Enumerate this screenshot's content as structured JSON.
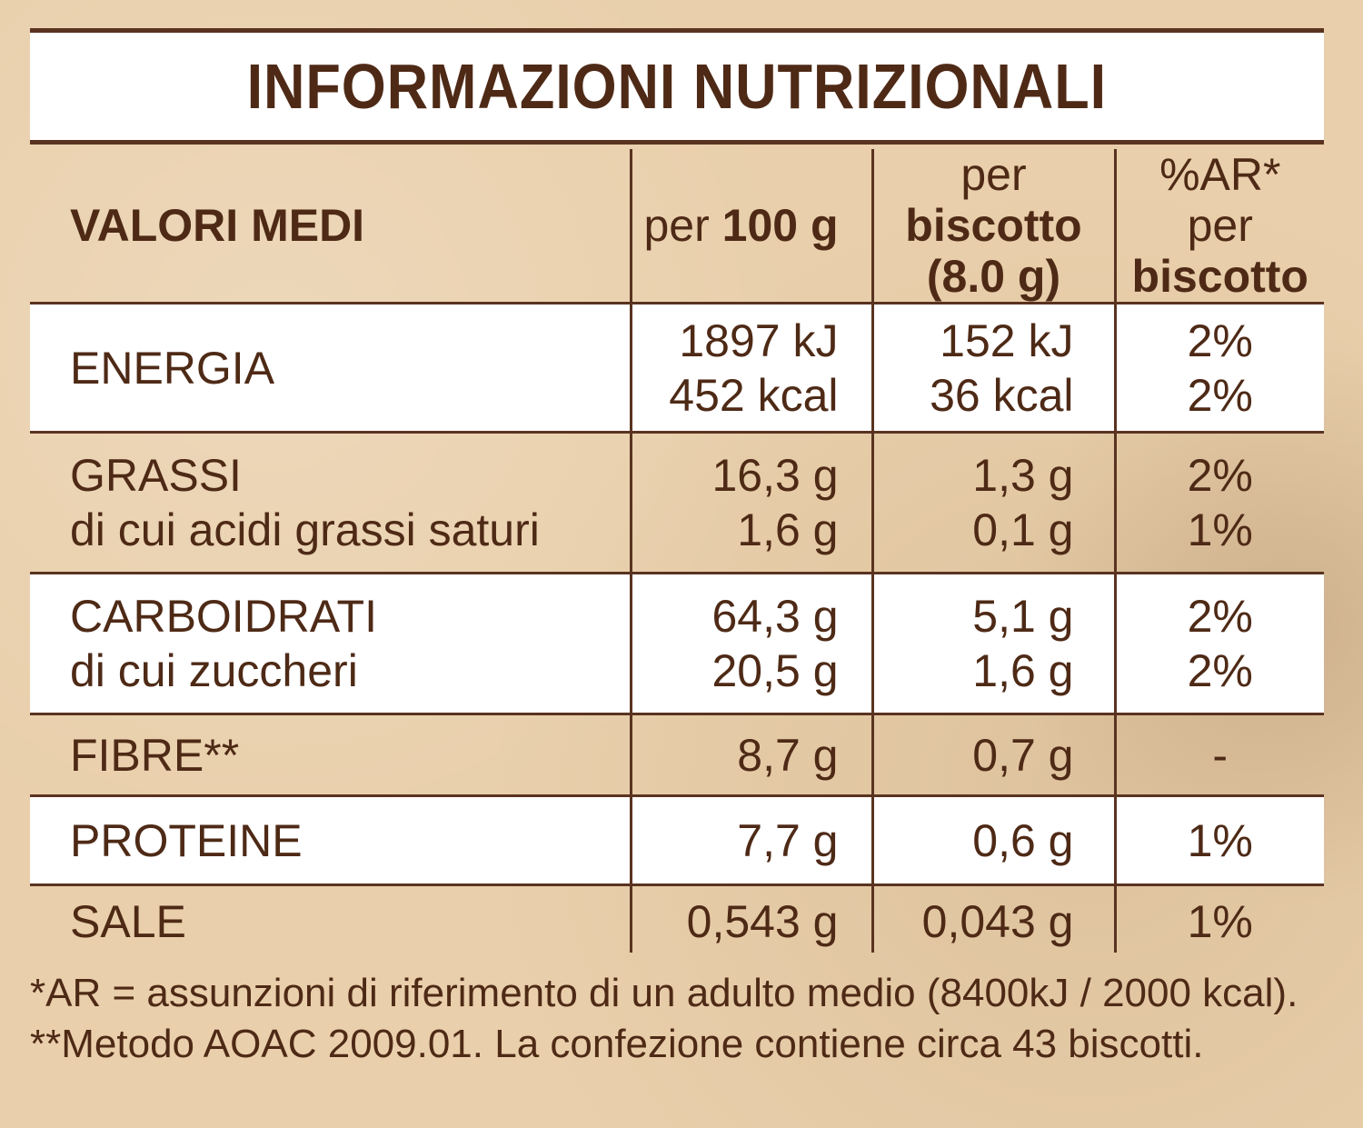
{
  "title": "INFORMAZIONI NUTRIZIONALI",
  "header": {
    "col1": "VALORI MEDI",
    "col2_prefix": "per ",
    "col2_bold": "100 g",
    "col3_prefix": "per ",
    "col3_bold": "biscotto",
    "col3_line2": "(8.0 g)",
    "col4_line1": "%AR*",
    "col4_prefix": "per ",
    "col4_bold": "biscotto"
  },
  "rows": {
    "energy": {
      "label": "ENERGIA",
      "per100_kj": "1897 kJ",
      "per100_kcal": "452 kcal",
      "perbiscotto_kj": "152 kJ",
      "perbiscotto_kcal": "36 kcal",
      "ar_kj": "2%",
      "ar_kcal": "2%"
    },
    "fat": {
      "label": "GRASSI",
      "sublabel": "di cui acidi grassi saturi",
      "per100": "16,3 g",
      "per100_sub": "1,6 g",
      "perbiscotto": "1,3 g",
      "perbiscotto_sub": "0,1 g",
      "ar": "2%",
      "ar_sub": "1%"
    },
    "carbs": {
      "label": "CARBOIDRATI",
      "sublabel": "di cui zuccheri",
      "per100": "64,3 g",
      "per100_sub": "20,5 g",
      "perbiscotto": "5,1 g",
      "perbiscotto_sub": "1,6 g",
      "ar": "2%",
      "ar_sub": "2%"
    },
    "fibre": {
      "label": "FIBRE**",
      "per100": "8,7 g",
      "perbiscotto": "0,7 g",
      "ar": "-"
    },
    "protein": {
      "label": "PROTEINE",
      "per100": "7,7 g",
      "perbiscotto": "0,6 g",
      "ar": "1%"
    },
    "salt": {
      "label": "SALE",
      "per100": "0,543 g",
      "perbiscotto": "0,043 g",
      "ar": "1%"
    }
  },
  "footnotes": {
    "line1": "*AR = assunzioni di riferimento di un adulto medio (8400kJ / 2000 kcal).",
    "line2": "**Metodo AOAC 2009.01. La confezione contiene circa 43 biscotti."
  },
  "colors": {
    "background": "#e9cfab",
    "text": "#4e2a16",
    "rules": "#5a3320",
    "panel": "#ffffff"
  }
}
